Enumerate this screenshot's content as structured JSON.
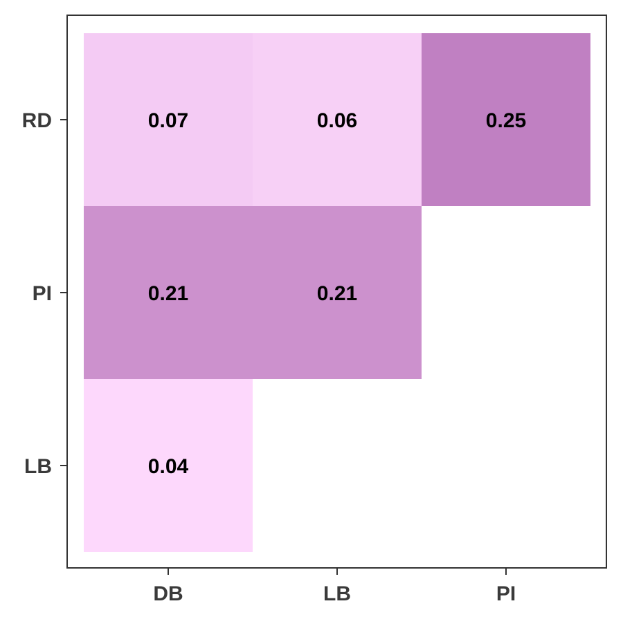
{
  "chart_data": {
    "type": "heatmap",
    "title": "",
    "xlabel": "",
    "ylabel": "",
    "x_categories": [
      "DB",
      "LB",
      "PI"
    ],
    "y_categories": [
      "RD",
      "PI",
      "LB"
    ],
    "cells": [
      {
        "x": "DB",
        "y": "RD",
        "value": 0.07,
        "label": "0.07"
      },
      {
        "x": "LB",
        "y": "RD",
        "value": 0.06,
        "label": "0.06"
      },
      {
        "x": "PI",
        "y": "RD",
        "value": 0.25,
        "label": "0.25"
      },
      {
        "x": "DB",
        "y": "PI",
        "value": 0.21,
        "label": "0.21"
      },
      {
        "x": "LB",
        "y": "PI",
        "value": 0.21,
        "label": "0.21"
      },
      {
        "x": "DB",
        "y": "LB",
        "value": 0.04,
        "label": "0.04"
      }
    ],
    "color_scale": {
      "low": "#fdd8fc",
      "high": "#c080c2",
      "min": 0.04,
      "max": 0.25
    },
    "legend": "none",
    "grid": false
  }
}
